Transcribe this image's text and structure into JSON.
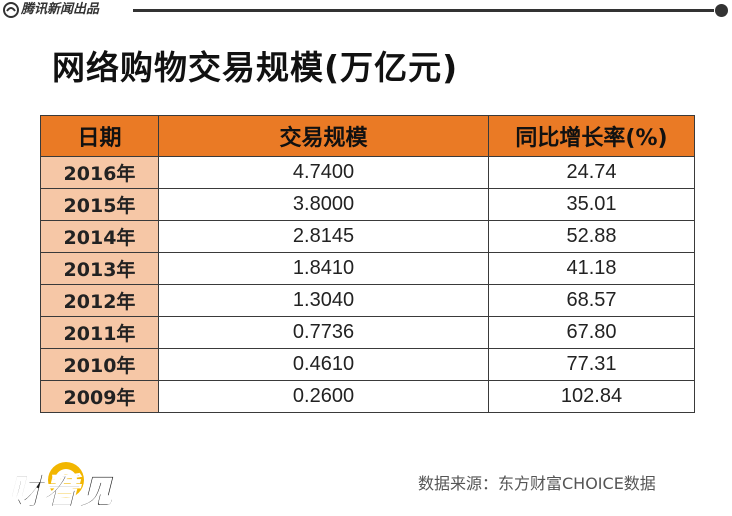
{
  "header": {
    "brand": "腾讯新闻出品",
    "icon": "tencent-news-logo"
  },
  "title": "网络购物交易规模(万亿元)",
  "table": {
    "columns": [
      "日期",
      "交易规模",
      "同比增长率(%)"
    ],
    "rows": [
      {
        "date": "2016年",
        "scale": "4.7400",
        "growth": "24.74"
      },
      {
        "date": "2015年",
        "scale": "3.8000",
        "growth": "35.01"
      },
      {
        "date": "2014年",
        "scale": "2.8145",
        "growth": "52.88"
      },
      {
        "date": "2013年",
        "scale": "1.8410",
        "growth": "41.18"
      },
      {
        "date": "2012年",
        "scale": "1.3040",
        "growth": "68.57"
      },
      {
        "date": "2011年",
        "scale": "0.7736",
        "growth": "67.80"
      },
      {
        "date": "2010年",
        "scale": "0.4610",
        "growth": "77.31"
      },
      {
        "date": "2009年",
        "scale": "0.2600",
        "growth": "102.84"
      }
    ]
  },
  "footer": {
    "logo_text": "财看见",
    "source": "数据来源：东方财富CHOICE数据"
  },
  "colors": {
    "header_fill": "#ea7a25",
    "date_fill": "#f6c7a6",
    "logo_gold": "#f2b600"
  }
}
